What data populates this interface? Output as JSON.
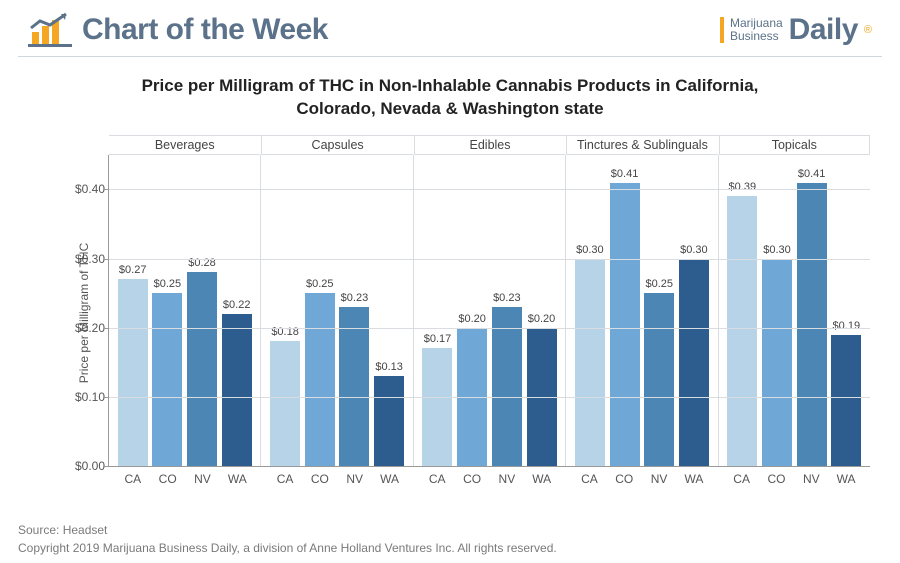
{
  "header": {
    "cotw_label": "Chart of the Week",
    "mjbiz_line1": "Marijuana",
    "mjbiz_line2": "Business",
    "mjbiz_daily": "Daily",
    "mjbiz_reg": "®"
  },
  "title": "Price per Milligram of THC in Non-Inhalable Cannabis Products in California, Colorado, Nevada & Washington state",
  "chart": {
    "type": "bar",
    "y_label": "Price per Milligram of THC",
    "ylim": [
      0.0,
      0.45
    ],
    "yticks": [
      0.0,
      0.1,
      0.2,
      0.3,
      0.4
    ],
    "ytick_labels": [
      "$0.00",
      "$0.10",
      "$0.20",
      "$0.30",
      "$0.40"
    ],
    "states": [
      "CA",
      "CO",
      "NV",
      "WA"
    ],
    "state_colors": {
      "CA": "#b6d3e8",
      "CO": "#6fa8d6",
      "NV": "#4c86b4",
      "WA": "#2d5d8f"
    },
    "groups": [
      {
        "name": "Beverages",
        "values": [
          0.27,
          0.25,
          0.28,
          0.22
        ],
        "labels": [
          "$0.27",
          "$0.25",
          "$0.28",
          "$0.22"
        ]
      },
      {
        "name": "Capsules",
        "values": [
          0.18,
          0.25,
          0.23,
          0.13
        ],
        "labels": [
          "$0.18",
          "$0.25",
          "$0.23",
          "$0.13"
        ]
      },
      {
        "name": "Edibles",
        "values": [
          0.17,
          0.2,
          0.23,
          0.2
        ],
        "labels": [
          "$0.17",
          "$0.20",
          "$0.23",
          "$0.20"
        ]
      },
      {
        "name": "Tinctures & Sublinguals",
        "values": [
          0.3,
          0.41,
          0.25,
          0.3
        ],
        "labels": [
          "$0.30",
          "$0.41",
          "$0.25",
          "$0.30"
        ]
      },
      {
        "name": "Topicals",
        "values": [
          0.39,
          0.3,
          0.41,
          0.19
        ],
        "labels": [
          "$0.39",
          "$0.30",
          "$0.41",
          "$0.19"
        ]
      }
    ],
    "grid_color": "#d9dde2",
    "background_color": "#ffffff",
    "label_fontsize": 12,
    "datalabel_fontsize": 11,
    "bar_width": 0.85
  },
  "footer": {
    "source": "Source: Headset",
    "copyright": "Copyright 2019 Marijuana Business Daily, a division of Anne Holland Ventures Inc. All rights reserved."
  }
}
